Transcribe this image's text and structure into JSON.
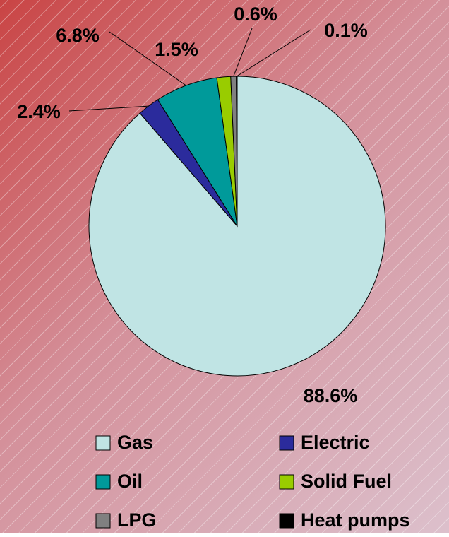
{
  "chart_data": {
    "type": "pie",
    "categories": [
      "Gas",
      "Electric",
      "Oil",
      "Solid Fuel",
      "LPG",
      "Heat pumps"
    ],
    "values": [
      88.6,
      2.4,
      6.8,
      1.5,
      0.6,
      0.1
    ],
    "value_labels": [
      "88.6%",
      "2.4%",
      "6.8%",
      "1.5%",
      "0.6%",
      "0.1%"
    ],
    "colors": [
      "#c0e4e4",
      "#2b2b9c",
      "#009a9a",
      "#99cc00",
      "#808080",
      "#000000"
    ],
    "legend": "bottom"
  }
}
